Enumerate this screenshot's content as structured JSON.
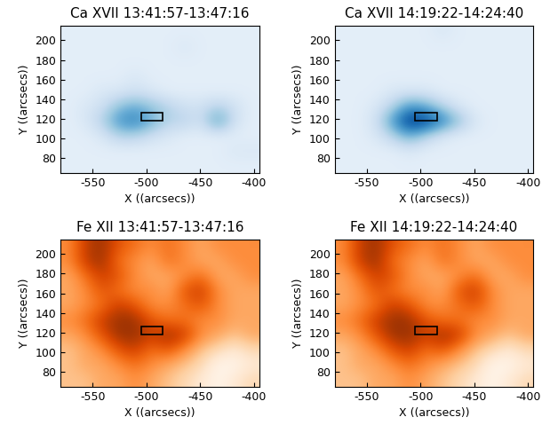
{
  "chart_data": [
    {
      "type": "heatmap",
      "title": "Ca XVII 13:41:57-13:47:16",
      "x_label": "X ((arcsecs))",
      "y_label": "Y ((arcsecs))",
      "xlim": [
        -580,
        -395
      ],
      "ylim": [
        65,
        215
      ],
      "xticks": [
        -550,
        -500,
        -450,
        -400
      ],
      "yticks": [
        80,
        100,
        120,
        140,
        160,
        180,
        200
      ],
      "color": "Blues",
      "color_range": [
        0,
        1
      ],
      "box": {
        "x": [
          -505,
          -485
        ],
        "y": [
          118,
          126
        ]
      },
      "cells": [
        [
          0.1,
          0.1,
          0.1,
          0.1,
          0.1,
          0.1,
          0.1,
          0.1,
          0.1,
          0.1,
          0.1,
          0.1
        ],
        [
          0.1,
          0.1,
          0.1,
          0.1,
          0.1,
          0.1,
          0.1,
          0.15,
          0.1,
          0.1,
          0.1,
          0.1
        ],
        [
          0.1,
          0.1,
          0.1,
          0.1,
          0.1,
          0.1,
          0.1,
          0.1,
          0.1,
          0.1,
          0.1,
          0.1
        ],
        [
          0.1,
          0.1,
          0.1,
          0.1,
          0.15,
          0.1,
          0.1,
          0.1,
          0.1,
          0.1,
          0.1,
          0.1
        ],
        [
          0.1,
          0.1,
          0.15,
          0.15,
          0.2,
          0.15,
          0.1,
          0.1,
          0.1,
          0.1,
          0.1,
          0.1
        ],
        [
          0.1,
          0.15,
          0.2,
          0.4,
          0.5,
          0.4,
          0.3,
          0.2,
          0.2,
          0.3,
          0.2,
          0.1
        ],
        [
          0.1,
          0.15,
          0.3,
          0.6,
          0.7,
          0.5,
          0.3,
          0.3,
          0.2,
          0.6,
          0.2,
          0.1
        ],
        [
          0.1,
          0.1,
          0.15,
          0.3,
          0.3,
          0.2,
          0.15,
          0.1,
          0.1,
          0.1,
          0.1,
          0.1
        ],
        [
          0.1,
          0.1,
          0.1,
          0.1,
          0.1,
          0.1,
          0.1,
          0.1,
          0.1,
          0.1,
          0.15,
          0.15
        ],
        [
          0.1,
          0.1,
          0.1,
          0.1,
          0.1,
          0.1,
          0.1,
          0.1,
          0.1,
          0.1,
          0.1,
          0.1
        ]
      ]
    },
    {
      "type": "heatmap",
      "title": "Ca XVII 14:19:22-14:24:40",
      "x_label": "X ((arcsecs))",
      "y_label": "Y ((arcsecs))",
      "xlim": [
        -580,
        -395
      ],
      "ylim": [
        65,
        215
      ],
      "xticks": [
        -550,
        -500,
        -450,
        -400
      ],
      "yticks": [
        80,
        100,
        120,
        140,
        160,
        180,
        200
      ],
      "color": "Blues",
      "color_range": [
        0,
        1
      ],
      "box": {
        "x": [
          -505,
          -485
        ],
        "y": [
          118,
          126
        ]
      },
      "cells": [
        [
          0.1,
          0.1,
          0.1,
          0.1,
          0.1,
          0.1,
          0.15,
          0.1,
          0.1,
          0.1,
          0.1,
          0.1
        ],
        [
          0.1,
          0.1,
          0.1,
          0.1,
          0.1,
          0.1,
          0.1,
          0.1,
          0.1,
          0.1,
          0.1,
          0.1
        ],
        [
          0.1,
          0.1,
          0.1,
          0.1,
          0.1,
          0.1,
          0.1,
          0.1,
          0.1,
          0.1,
          0.1,
          0.1
        ],
        [
          0.1,
          0.1,
          0.1,
          0.1,
          0.1,
          0.1,
          0.1,
          0.1,
          0.1,
          0.1,
          0.1,
          0.1
        ],
        [
          0.1,
          0.1,
          0.1,
          0.15,
          0.15,
          0.15,
          0.1,
          0.1,
          0.1,
          0.1,
          0.1,
          0.1
        ],
        [
          0.1,
          0.1,
          0.15,
          0.3,
          0.6,
          0.5,
          0.3,
          0.15,
          0.1,
          0.1,
          0.1,
          0.1
        ],
        [
          0.1,
          0.1,
          0.2,
          0.6,
          1.0,
          0.95,
          0.7,
          0.4,
          0.15,
          0.1,
          0.1,
          0.1
        ],
        [
          0.1,
          0.1,
          0.15,
          0.3,
          0.5,
          0.3,
          0.15,
          0.1,
          0.1,
          0.1,
          0.1,
          0.1
        ],
        [
          0.1,
          0.1,
          0.1,
          0.1,
          0.15,
          0.1,
          0.1,
          0.1,
          0.1,
          0.1,
          0.1,
          0.1
        ],
        [
          0.1,
          0.1,
          0.1,
          0.1,
          0.1,
          0.1,
          0.1,
          0.1,
          0.1,
          0.1,
          0.1,
          0.1
        ]
      ]
    },
    {
      "type": "heatmap",
      "title": "Fe XII 13:41:57-13:47:16",
      "x_label": "X ((arcsecs))",
      "y_label": "Y ((arcsecs))",
      "xlim": [
        -580,
        -395
      ],
      "ylim": [
        65,
        215
      ],
      "xticks": [
        -550,
        -500,
        -450,
        -400
      ],
      "yticks": [
        80,
        100,
        120,
        140,
        160,
        180,
        200
      ],
      "color": "Oranges",
      "color_range": [
        0,
        1
      ],
      "box": {
        "x": [
          -505,
          -485
        ],
        "y": [
          118,
          126
        ]
      },
      "cells": [
        [
          0.5,
          0.8,
          0.9,
          0.7,
          0.6,
          0.5,
          0.6,
          0.5,
          0.4,
          0.5,
          0.5,
          0.5
        ],
        [
          0.5,
          0.8,
          0.9,
          0.6,
          0.5,
          0.4,
          0.6,
          0.5,
          0.4,
          0.4,
          0.5,
          0.5
        ],
        [
          0.4,
          0.6,
          0.8,
          0.7,
          0.5,
          0.4,
          0.4,
          0.5,
          0.6,
          0.4,
          0.4,
          0.5
        ],
        [
          0.4,
          0.5,
          0.7,
          0.6,
          0.5,
          0.5,
          0.4,
          0.7,
          0.8,
          0.5,
          0.4,
          0.4
        ],
        [
          0.4,
          0.5,
          0.6,
          0.8,
          0.7,
          0.5,
          0.5,
          0.6,
          0.7,
          0.5,
          0.4,
          0.4
        ],
        [
          0.5,
          0.6,
          0.8,
          0.9,
          0.9,
          0.7,
          0.6,
          0.6,
          0.5,
          0.5,
          0.4,
          0.4
        ],
        [
          0.4,
          0.5,
          0.7,
          0.9,
          0.9,
          0.8,
          0.9,
          0.8,
          0.5,
          0.4,
          0.3,
          0.4
        ],
        [
          0.3,
          0.4,
          0.5,
          0.7,
          0.8,
          0.6,
          0.7,
          0.5,
          0.3,
          0.2,
          0.1,
          0.2
        ],
        [
          0.3,
          0.4,
          0.4,
          0.5,
          0.6,
          0.5,
          0.4,
          0.3,
          0.2,
          0.0,
          0.0,
          0.1
        ],
        [
          0.3,
          0.3,
          0.4,
          0.4,
          0.5,
          0.4,
          0.3,
          0.2,
          0.1,
          0.0,
          0.1,
          0.2
        ]
      ]
    },
    {
      "type": "heatmap",
      "title": "Fe XII 14:19:22-14:24:40",
      "x_label": "X ((arcsecs))",
      "y_label": "Y ((arcsecs))",
      "xlim": [
        -580,
        -395
      ],
      "ylim": [
        65,
        215
      ],
      "xticks": [
        -550,
        -500,
        -450,
        -400
      ],
      "yticks": [
        80,
        100,
        120,
        140,
        160,
        180,
        200
      ],
      "color": "Oranges",
      "color_range": [
        0,
        1
      ],
      "box": {
        "x": [
          -505,
          -485
        ],
        "y": [
          118,
          126
        ]
      },
      "cells": [
        [
          0.5,
          0.8,
          0.9,
          0.7,
          0.6,
          0.5,
          0.6,
          0.5,
          0.4,
          0.5,
          0.5,
          0.5
        ],
        [
          0.5,
          0.8,
          0.9,
          0.6,
          0.5,
          0.4,
          0.6,
          0.5,
          0.4,
          0.4,
          0.5,
          0.5
        ],
        [
          0.4,
          0.6,
          0.8,
          0.7,
          0.5,
          0.4,
          0.4,
          0.5,
          0.6,
          0.4,
          0.4,
          0.5
        ],
        [
          0.4,
          0.5,
          0.7,
          0.6,
          0.5,
          0.5,
          0.4,
          0.7,
          0.8,
          0.5,
          0.4,
          0.4
        ],
        [
          0.4,
          0.5,
          0.6,
          0.8,
          0.7,
          0.5,
          0.5,
          0.6,
          0.7,
          0.5,
          0.4,
          0.4
        ],
        [
          0.5,
          0.6,
          0.8,
          0.9,
          0.9,
          0.7,
          0.6,
          0.6,
          0.5,
          0.5,
          0.4,
          0.4
        ],
        [
          0.4,
          0.5,
          0.7,
          0.9,
          0.9,
          0.8,
          0.9,
          0.8,
          0.5,
          0.4,
          0.3,
          0.4
        ],
        [
          0.3,
          0.4,
          0.5,
          0.7,
          0.8,
          0.6,
          0.7,
          0.5,
          0.3,
          0.2,
          0.1,
          0.2
        ],
        [
          0.3,
          0.4,
          0.4,
          0.5,
          0.6,
          0.5,
          0.4,
          0.3,
          0.2,
          0.0,
          0.0,
          0.1
        ],
        [
          0.3,
          0.3,
          0.4,
          0.4,
          0.5,
          0.4,
          0.3,
          0.2,
          0.1,
          0.0,
          0.1,
          0.2
        ]
      ]
    }
  ]
}
